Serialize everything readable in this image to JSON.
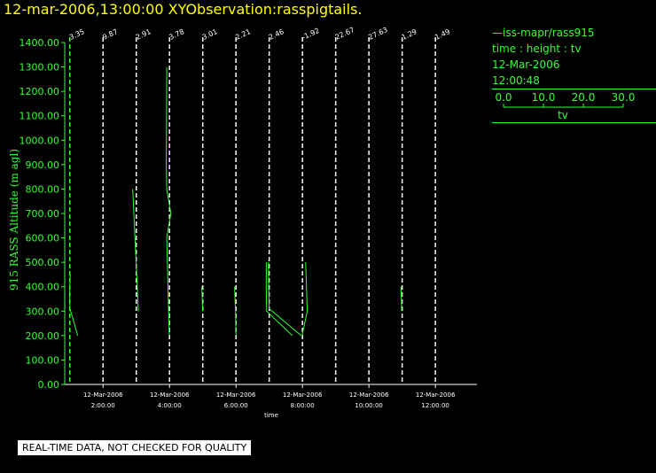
{
  "header": {
    "title": "12-mar-2006,13:00:00  XYObservation:rasspigtails."
  },
  "colors": {
    "background": "#000000",
    "title": "#ffff00",
    "data": "#33ff33",
    "text": "#ffffff"
  },
  "legend": {
    "series_label": "iss-mapr/rass915",
    "description": "time : height : tv",
    "date": "12-Mar-2006",
    "time": "12:00:48",
    "scale_ticks": [
      "0.0",
      "10.0",
      "20.0",
      "30.0"
    ],
    "scale_label": "tv"
  },
  "quality_note": "REAL-TIME DATA, NOT CHECKED FOR QUALITY",
  "chart_data": {
    "type": "line",
    "title": "12-mar-2006,13:00:00  XYObservation:rasspigtails.",
    "xlabel": "time",
    "ylabel": "915 RASS Altitude (m agl)",
    "ylim": [
      0,
      1400
    ],
    "yticks": [
      "0.00",
      "100.00",
      "200.00",
      "300.00",
      "400.00",
      "500.00",
      "600.00",
      "700.00",
      "800.00",
      "900.00",
      "1000.00",
      "1100.00",
      "1200.00",
      "1300.00",
      "1400.00"
    ],
    "xticks": [
      {
        "date": "12-Mar-2006",
        "time": "2:00:00"
      },
      {
        "date": "12-Mar-2006",
        "time": "4:00:00"
      },
      {
        "date": "12-Mar-2006",
        "time": "6:00:00"
      },
      {
        "date": "12-Mar-2006",
        "time": "8:00:00"
      },
      {
        "date": "12-Mar-2006",
        "time": "10:00:00"
      },
      {
        "date": "12-Mar-2006",
        "time": "12:00:00"
      }
    ],
    "x_hours_range": [
      0.9,
      13.25
    ],
    "baseline_hours": [
      1,
      2,
      3,
      4,
      5,
      6,
      7,
      8,
      9,
      10,
      11,
      12
    ],
    "baseline_labels": [
      "3.35",
      "9.87",
      "2.91",
      "3.78",
      "3.01",
      "2.21",
      "2.46",
      "-1.92",
      "22.67",
      "27.63",
      "1.29",
      "1.49"
    ],
    "grid": false,
    "legend_position": "right",
    "profiles": [
      {
        "hour": 1,
        "points": [
          [
            0.5,
            450
          ],
          [
            0.0,
            380
          ],
          [
            0.2,
            310
          ],
          [
            10.0,
            200
          ]
        ]
      },
      {
        "hour": 3,
        "points": [
          [
            -4.5,
            800
          ],
          [
            2.6,
            300
          ]
        ]
      },
      {
        "hour": 4,
        "points": [
          [
            -3.5,
            1300
          ],
          [
            -4.0,
            900
          ],
          [
            -3.5,
            800
          ],
          [
            1.6,
            700
          ],
          [
            -3.5,
            600
          ],
          [
            -0.3,
            200
          ]
        ]
      },
      {
        "hour": 5,
        "points": [
          [
            -1.2,
            400
          ],
          [
            0.0,
            300
          ]
        ]
      },
      {
        "hour": 6,
        "points": [
          [
            -1.8,
            400
          ],
          [
            -0.6,
            300
          ],
          [
            0.0,
            200
          ]
        ]
      },
      {
        "hour": 7,
        "points": [
          [
            -3.6,
            500
          ],
          [
            -3.8,
            400
          ],
          [
            -3.2,
            300
          ],
          [
            29.0,
            200
          ]
        ]
      },
      {
        "hour": 7,
        "points": [
          [
            -1.0,
            500
          ],
          [
            -0.8,
            400
          ],
          [
            0.0,
            310
          ],
          [
            40.0,
            200
          ]
        ]
      },
      {
        "hour": 7,
        "points": [
          [
            -0.2,
            380
          ],
          [
            -0.2,
            360
          ]
        ]
      },
      {
        "hour": 8,
        "points": [
          [
            4.0,
            500
          ],
          [
            5.0,
            400
          ],
          [
            6.0,
            300
          ],
          [
            -0.5,
            200
          ]
        ]
      },
      {
        "hour": 11,
        "points": [
          [
            -1.5,
            400
          ],
          [
            -1.0,
            350
          ],
          [
            -0.6,
            300
          ]
        ]
      }
    ]
  }
}
